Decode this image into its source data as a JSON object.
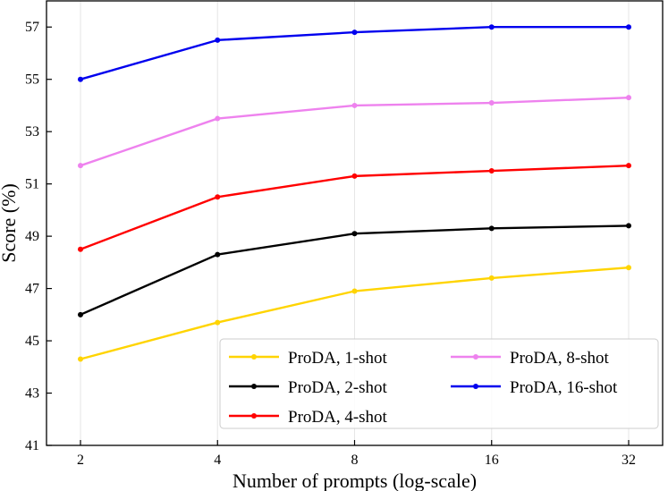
{
  "chart_data": {
    "type": "line",
    "xlabel": "Number of prompts (log-scale)",
    "ylabel": "Score (%)",
    "x_scale": "log2",
    "x": [
      2,
      4,
      8,
      16,
      32
    ],
    "x_tick_labels": [
      "2",
      "4",
      "8",
      "16",
      "32"
    ],
    "ylim": [
      41,
      58
    ],
    "y_ticks": [
      41,
      43,
      45,
      47,
      49,
      51,
      53,
      55,
      57
    ],
    "grid": "vertical-only",
    "legend_position": "bottom-right",
    "legend_columns": 2,
    "series": [
      {
        "name": "ProDA, 1-shot",
        "color": "#FFD400",
        "values": [
          44.3,
          45.7,
          46.9,
          47.4,
          47.8
        ]
      },
      {
        "name": "ProDA, 2-shot",
        "color": "#000000",
        "values": [
          46.0,
          48.3,
          49.1,
          49.3,
          49.4
        ]
      },
      {
        "name": "ProDA, 4-shot",
        "color": "#FF0000",
        "values": [
          48.5,
          50.5,
          51.3,
          51.5,
          51.7
        ]
      },
      {
        "name": "ProDA, 8-shot",
        "color": "#EE82EE",
        "values": [
          51.7,
          53.5,
          54.0,
          54.1,
          54.3
        ]
      },
      {
        "name": "ProDA, 16-shot",
        "color": "#0000EE",
        "values": [
          55.0,
          56.5,
          56.8,
          57.0,
          57.0
        ]
      }
    ]
  }
}
